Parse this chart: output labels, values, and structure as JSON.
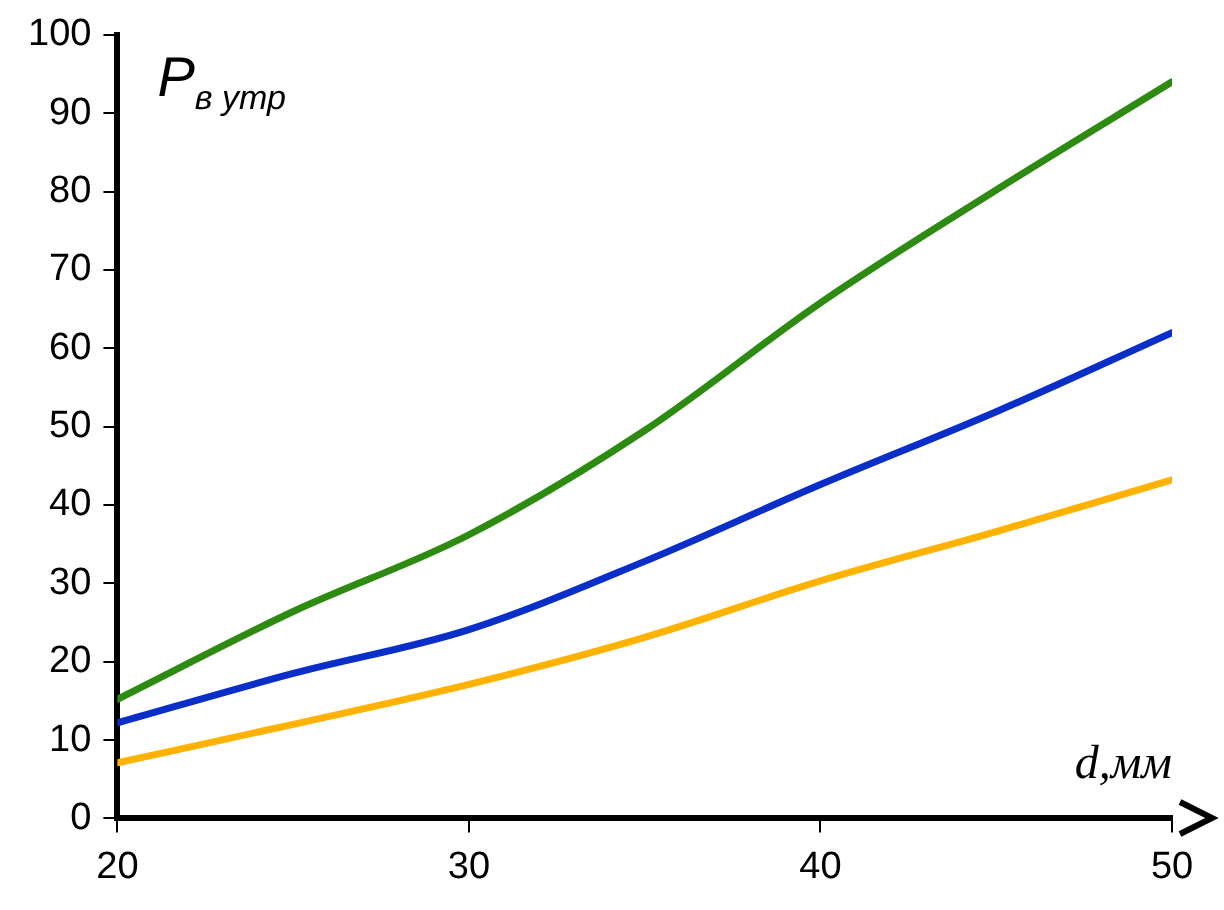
{
  "chart_data": {
    "type": "line",
    "xlabel": "d,мм",
    "ylabel": "P$_{в утр}$",
    "x": [
      20,
      25,
      30,
      35,
      40,
      45,
      50
    ],
    "series": [
      {
        "color": "#2e8b12",
        "values": [
          15.2,
          26.4,
          36.2,
          49.5,
          65.8,
          80.2,
          94
        ]
      },
      {
        "color": "#0a2ec8",
        "values": [
          12.2,
          18.5,
          24.1,
          32.8,
          42.6,
          51.9,
          62
        ]
      },
      {
        "color": "#ffb300",
        "values": [
          7.1,
          12,
          17.1,
          23.1,
          30.3,
          36.6,
          43.2
        ]
      }
    ],
    "xlim": [
      20,
      50
    ],
    "xticks": [
      20,
      30,
      40,
      50
    ],
    "ylim": [
      0,
      100
    ],
    "yticks": [
      0,
      10,
      20,
      30,
      40,
      50,
      60,
      70,
      80,
      90,
      100
    ],
    "grid": false,
    "legend": false,
    "marker": "none",
    "line_style": "solid"
  }
}
